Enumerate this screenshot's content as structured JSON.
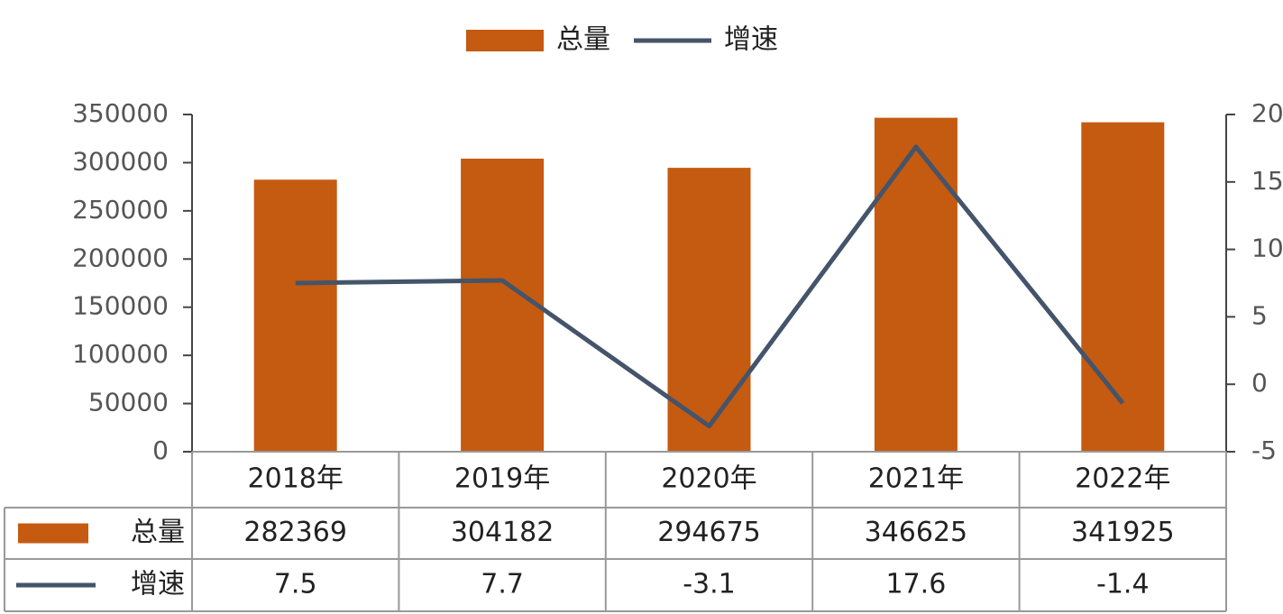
{
  "chart_data": {
    "type": "bar",
    "categories": [
      "2018年",
      "2019年",
      "2020年",
      "2021年",
      "2022年"
    ],
    "series": [
      {
        "name": "总量",
        "type": "bar",
        "color": "#c55a11",
        "values": [
          282369,
          304182,
          294675,
          346625,
          341925
        ]
      },
      {
        "name": "增速",
        "type": "line",
        "axis": "y2",
        "color": "#44546a",
        "values": [
          7.5,
          7.7,
          -3.1,
          17.6,
          -1.4
        ]
      }
    ],
    "ylim": [
      0,
      350000
    ],
    "yticks": [
      0,
      50000,
      100000,
      150000,
      200000,
      250000,
      300000,
      350000
    ],
    "y2lim": [
      -5,
      20
    ],
    "y2ticks": [
      -5,
      0,
      5,
      10,
      15,
      20
    ],
    "legend": "top",
    "data_table": true
  }
}
